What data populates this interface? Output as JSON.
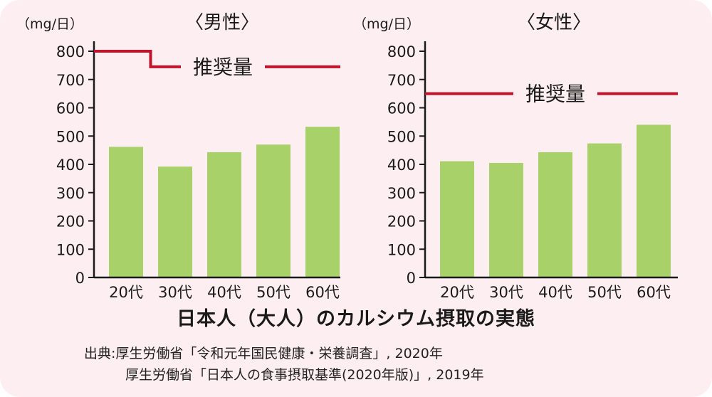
{
  "chart_data": [
    {
      "type": "bar",
      "title": "〈男性〉",
      "unit": "（mg/日）",
      "categories": [
        "20代",
        "30代",
        "40代",
        "50代",
        "60代"
      ],
      "values": [
        462,
        392,
        443,
        470,
        533
      ],
      "ylim": [
        0,
        800
      ],
      "yticks": [
        0,
        100,
        200,
        300,
        400,
        500,
        600,
        700,
        800
      ],
      "reference": {
        "label": "推奨量",
        "segments": [
          {
            "categories": [
              "20代"
            ],
            "value": 800
          },
          {
            "categories": [
              "30代",
              "40代",
              "50代",
              "60代"
            ],
            "value": 745
          }
        ]
      },
      "colors": {
        "bar": "#a9d16a",
        "reference": "#c0132c"
      }
    },
    {
      "type": "bar",
      "title": "〈女性〉",
      "unit": "（mg/日）",
      "categories": [
        "20代",
        "30代",
        "40代",
        "50代",
        "60代"
      ],
      "values": [
        411,
        405,
        443,
        474,
        540
      ],
      "ylim": [
        0,
        800
      ],
      "yticks": [
        0,
        100,
        200,
        300,
        400,
        500,
        600,
        700,
        800
      ],
      "reference": {
        "label": "推奨量",
        "segments": [
          {
            "categories": [
              "20代",
              "30代",
              "40代",
              "50代",
              "60代"
            ],
            "value": 650
          }
        ]
      },
      "colors": {
        "bar": "#a9d16a",
        "reference": "#c0132c"
      }
    }
  ],
  "caption": "日本人（大人）のカルシウム摂取の実態",
  "sources": [
    "出典:厚生労働省「令和元年国民健康・栄養調査」, 2020年",
    "厚生労働省「日本人の食事摂取基準(2020年版)」, 2019年"
  ]
}
